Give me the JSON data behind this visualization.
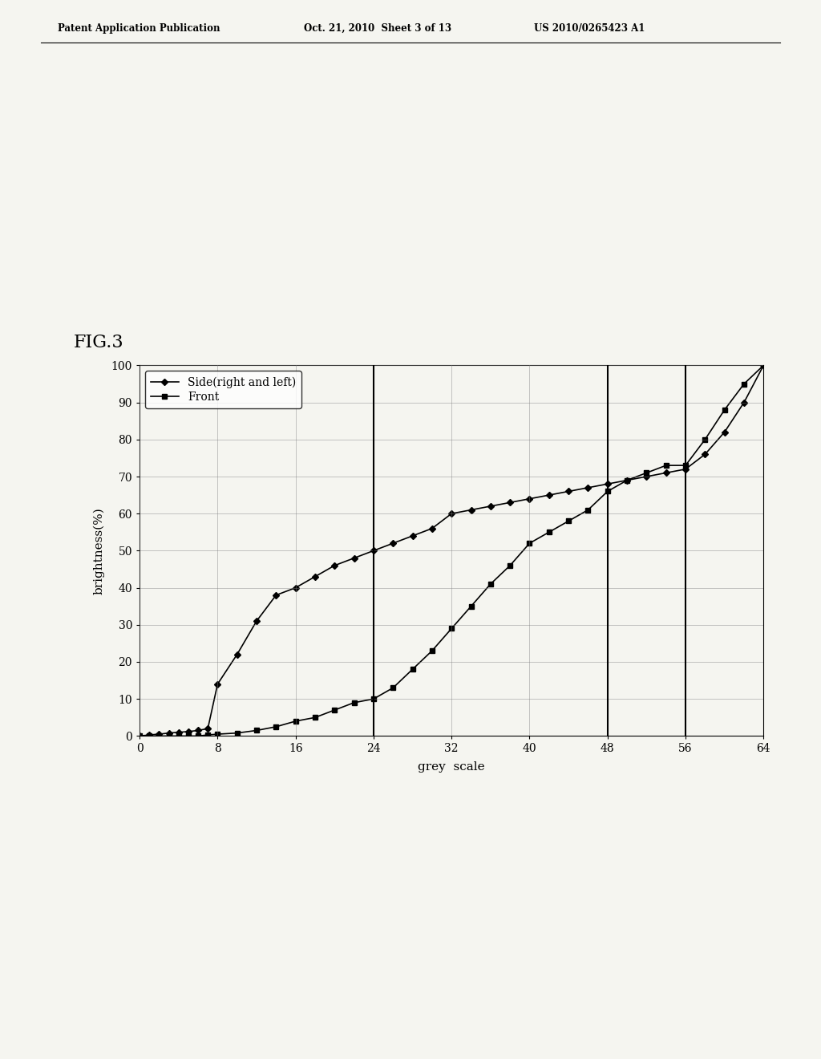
{
  "fig_label": "FIG.3",
  "header_left": "Patent Application Publication",
  "header_mid": "Oct. 21, 2010  Sheet 3 of 13",
  "header_right": "US 2010/0265423 A1",
  "xlabel": "grey  scale",
  "ylabel": "brightness(%)",
  "xlim": [
    0,
    64
  ],
  "ylim": [
    0,
    100
  ],
  "xticks": [
    0,
    8,
    16,
    24,
    32,
    40,
    48,
    56,
    64
  ],
  "yticks": [
    0,
    10,
    20,
    30,
    40,
    50,
    60,
    70,
    80,
    90,
    100
  ],
  "side_x": [
    0,
    1,
    2,
    3,
    4,
    5,
    6,
    7,
    8,
    10,
    12,
    14,
    16,
    18,
    20,
    22,
    24,
    26,
    28,
    30,
    32,
    34,
    36,
    38,
    40,
    42,
    44,
    46,
    48,
    50,
    52,
    54,
    56,
    58,
    60,
    62,
    64
  ],
  "side_y": [
    0,
    0.3,
    0.5,
    0.8,
    1.0,
    1.2,
    1.5,
    2.0,
    14,
    22,
    31,
    38,
    40,
    43,
    46,
    48,
    50,
    52,
    54,
    56,
    60,
    61,
    62,
    63,
    64,
    65,
    66,
    67,
    68,
    69,
    70,
    71,
    72,
    76,
    82,
    90,
    100
  ],
  "front_x": [
    0,
    1,
    2,
    3,
    4,
    5,
    6,
    7,
    8,
    10,
    12,
    14,
    16,
    18,
    20,
    22,
    24,
    26,
    28,
    30,
    32,
    34,
    36,
    38,
    40,
    42,
    44,
    46,
    48,
    50,
    52,
    54,
    56,
    58,
    60,
    62,
    64
  ],
  "front_y": [
    0,
    0,
    0,
    0,
    0,
    0,
    0,
    0.3,
    0.5,
    0.8,
    1.5,
    2.5,
    4,
    5,
    7,
    9,
    10,
    13,
    18,
    23,
    29,
    35,
    41,
    46,
    52,
    55,
    58,
    61,
    66,
    69,
    71,
    73,
    73,
    80,
    88,
    95,
    100
  ],
  "vlines": [
    24,
    48,
    56
  ],
  "line_color": "#000000",
  "bg_color": "#f5f5f0",
  "legend_side": "Side(right and left)",
  "legend_front": "Front"
}
